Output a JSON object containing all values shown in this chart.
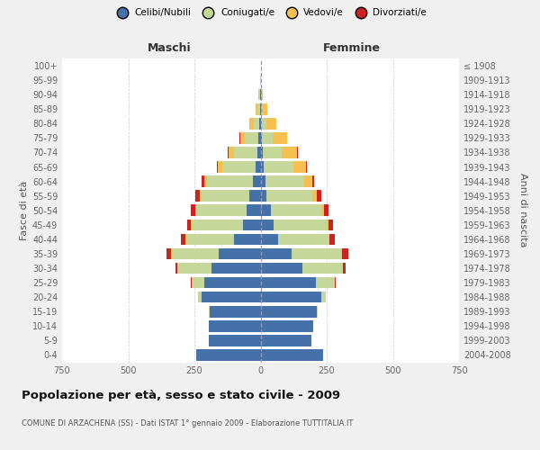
{
  "age_groups": [
    "0-4",
    "5-9",
    "10-14",
    "15-19",
    "20-24",
    "25-29",
    "30-34",
    "35-39",
    "40-44",
    "45-49",
    "50-54",
    "55-59",
    "60-64",
    "65-69",
    "70-74",
    "75-79",
    "80-84",
    "85-89",
    "90-94",
    "95-99",
    "100+"
  ],
  "birth_years": [
    "2004-2008",
    "1999-2003",
    "1994-1998",
    "1989-1993",
    "1984-1988",
    "1979-1983",
    "1974-1978",
    "1969-1973",
    "1964-1968",
    "1959-1963",
    "1954-1958",
    "1949-1953",
    "1944-1948",
    "1939-1943",
    "1934-1938",
    "1929-1933",
    "1924-1928",
    "1919-1923",
    "1914-1918",
    "1909-1913",
    "≤ 1908"
  ],
  "colors": {
    "celibe": "#4472a8",
    "coniugato": "#c5d89a",
    "vedovo": "#f5c050",
    "divorziato": "#cc2222"
  },
  "maschi": {
    "celibe": [
      242,
      196,
      196,
      192,
      222,
      212,
      185,
      158,
      100,
      68,
      52,
      42,
      30,
      18,
      13,
      9,
      5,
      3,
      1,
      0,
      0
    ],
    "coniugato": [
      0,
      0,
      1,
      4,
      14,
      48,
      128,
      178,
      182,
      192,
      190,
      182,
      172,
      128,
      88,
      52,
      22,
      9,
      4,
      1,
      0
    ],
    "vedovo": [
      0,
      0,
      0,
      0,
      0,
      0,
      0,
      1,
      2,
      3,
      4,
      7,
      11,
      14,
      19,
      17,
      14,
      7,
      3,
      1,
      0
    ],
    "divorziato": [
      0,
      0,
      0,
      0,
      1,
      2,
      7,
      17,
      17,
      14,
      17,
      17,
      11,
      5,
      3,
      2,
      1,
      1,
      0,
      0,
      0
    ]
  },
  "femmine": {
    "nubile": [
      238,
      193,
      198,
      213,
      228,
      208,
      158,
      118,
      68,
      48,
      38,
      23,
      18,
      11,
      7,
      5,
      3,
      2,
      1,
      0,
      0
    ],
    "coniugata": [
      0,
      0,
      1,
      4,
      18,
      72,
      152,
      188,
      188,
      202,
      192,
      172,
      148,
      112,
      72,
      42,
      18,
      7,
      3,
      1,
      0
    ],
    "vedova": [
      0,
      0,
      0,
      0,
      0,
      1,
      1,
      2,
      4,
      7,
      11,
      17,
      28,
      48,
      58,
      52,
      38,
      17,
      5,
      2,
      0
    ],
    "divorziata": [
      0,
      0,
      0,
      0,
      1,
      2,
      11,
      24,
      19,
      17,
      17,
      17,
      9,
      4,
      3,
      2,
      1,
      1,
      0,
      0,
      0
    ]
  },
  "title": "Popolazione per età, sesso e stato civile - 2009",
  "subtitle": "COMUNE DI ARZACHENA (SS) - Dati ISTAT 1° gennaio 2009 - Elaborazione TUTTITALIA.IT",
  "label_maschi": "Maschi",
  "label_femmine": "Femmine",
  "ylabel_left": "Fasce di età",
  "ylabel_right": "Anni di nascita",
  "xlim": 750,
  "xticks": [
    -750,
    -500,
    -250,
    0,
    250,
    500,
    750
  ],
  "bg_color": "#f0f0f0",
  "plot_bg": "#ffffff",
  "grid_color": "#c8c8c8",
  "legend_labels": [
    "Celibi/Nubili",
    "Coniugati/e",
    "Vedovi/e",
    "Divorziati/e"
  ],
  "legend_colors": [
    "#4472a8",
    "#c5d89a",
    "#f5c050",
    "#cc2222"
  ]
}
